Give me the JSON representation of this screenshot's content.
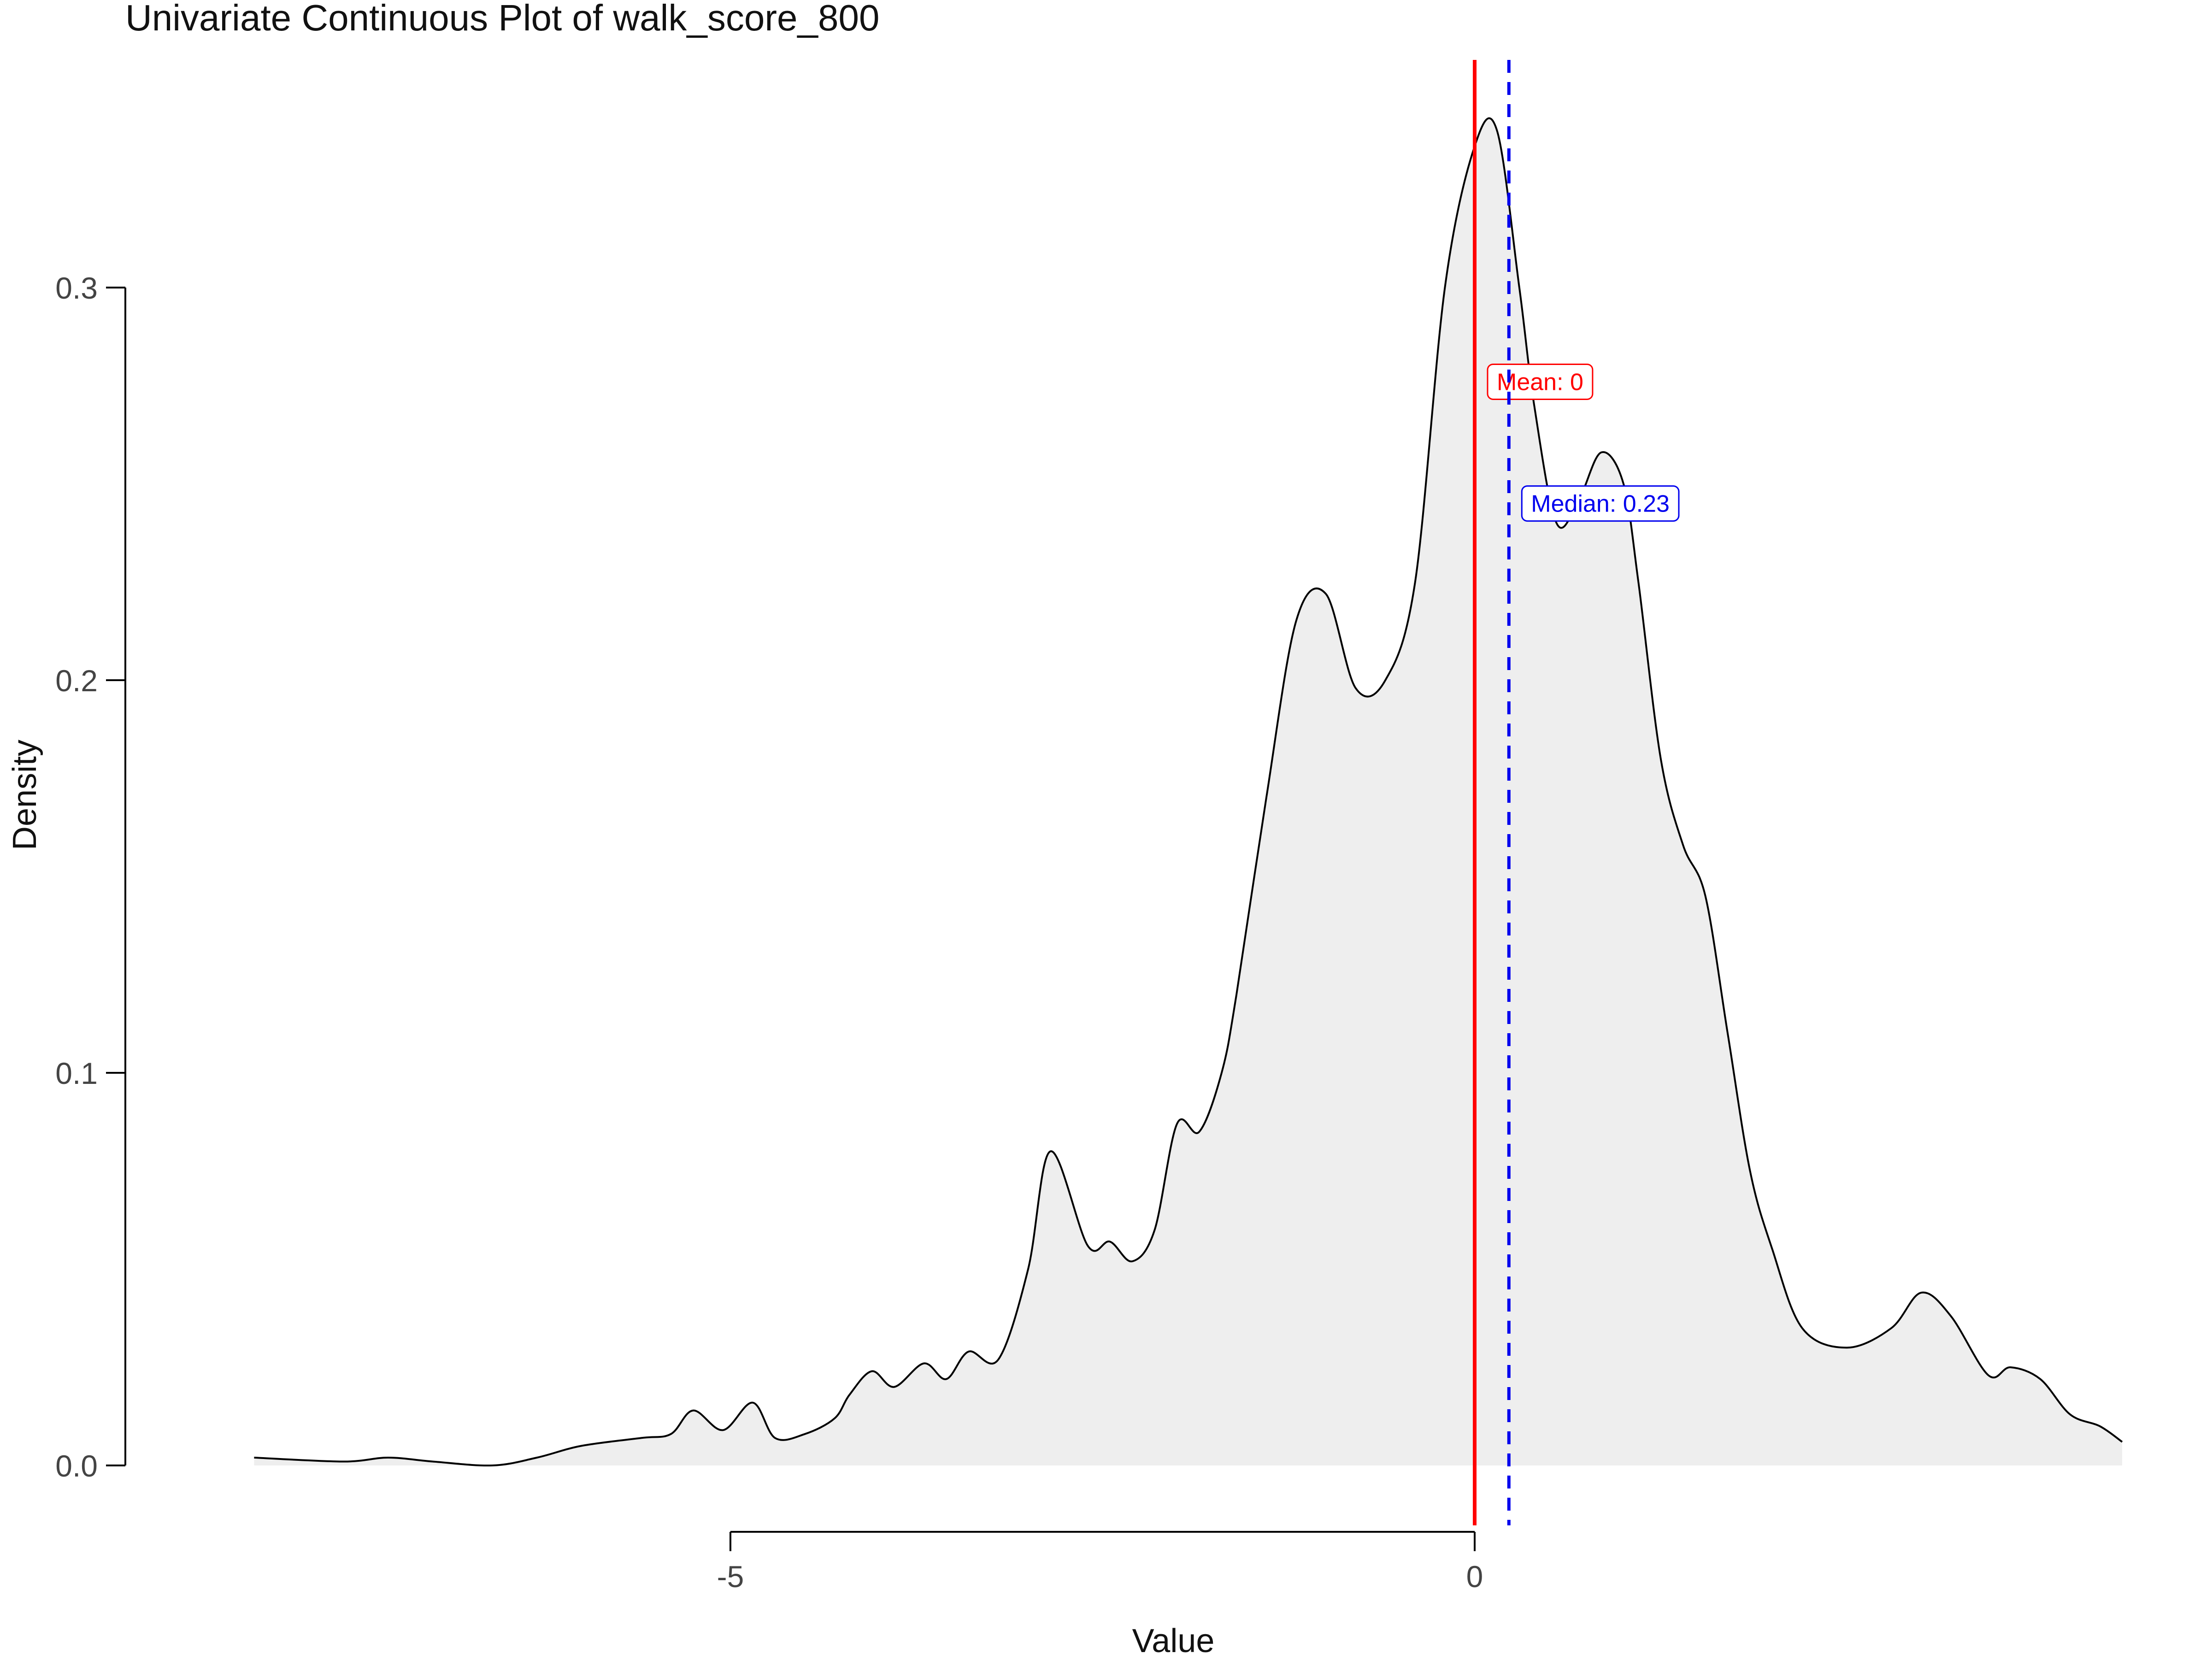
{
  "colors": {
    "density_fill": "#eeeeee",
    "density_line": "#000000",
    "mean_line": "#ff0000",
    "median_line": "#0000ee",
    "axis": "#000000"
  },
  "chart_data": {
    "type": "area",
    "title": "Univariate Continuous Plot of walk_score_800",
    "xlabel": "Value",
    "ylabel": "Density",
    "xlim": [
      -8.2,
      4.4
    ],
    "ylim": [
      0,
      0.34
    ],
    "x_ticks": [
      -5,
      0
    ],
    "x_tick_labels": [
      "-5",
      "0"
    ],
    "y_ticks": [
      0.0,
      0.1,
      0.2,
      0.3
    ],
    "y_tick_labels": [
      "0.0",
      "0.1",
      "0.2",
      "0.3"
    ],
    "grid": false,
    "legend": "none",
    "series": [
      {
        "x": [
          -8.2,
          -7.6,
          -7.3,
          -7.0,
          -6.6,
          -6.3,
          -6.0,
          -5.6,
          -5.4,
          -5.25,
          -5.05,
          -4.85,
          -4.7,
          -4.5,
          -4.3,
          -4.2,
          -4.05,
          -3.9,
          -3.7,
          -3.55,
          -3.4,
          -3.2,
          -3.0,
          -2.85,
          -2.6,
          -2.45,
          -2.3,
          -2.15,
          -2.0,
          -1.85,
          -1.7,
          -1.6,
          -1.4,
          -1.2,
          -1.0,
          -0.8,
          -0.6,
          -0.4,
          -0.2,
          0.0,
          0.15,
          0.3,
          0.4,
          0.55,
          0.7,
          0.85,
          1.0,
          1.1,
          1.25,
          1.4,
          1.55,
          1.7,
          1.85,
          2.0,
          2.2,
          2.5,
          2.8,
          3.0,
          3.2,
          3.45,
          3.6,
          3.8,
          4.0,
          4.2,
          4.35
        ],
        "y": [
          0.002,
          0.001,
          0.002,
          0.001,
          0.0,
          0.002,
          0.005,
          0.007,
          0.008,
          0.014,
          0.009,
          0.016,
          0.007,
          0.008,
          0.012,
          0.018,
          0.024,
          0.02,
          0.026,
          0.022,
          0.029,
          0.027,
          0.05,
          0.08,
          0.056,
          0.057,
          0.052,
          0.06,
          0.087,
          0.085,
          0.1,
          0.12,
          0.17,
          0.215,
          0.222,
          0.198,
          0.2,
          0.225,
          0.3,
          0.336,
          0.34,
          0.3,
          0.27,
          0.24,
          0.246,
          0.258,
          0.25,
          0.225,
          0.18,
          0.158,
          0.145,
          0.11,
          0.075,
          0.055,
          0.035,
          0.03,
          0.035,
          0.044,
          0.038,
          0.023,
          0.025,
          0.022,
          0.013,
          0.01,
          0.006
        ]
      }
    ],
    "reference_lines": [
      {
        "label": "Mean: 0",
        "x": 0.0,
        "style": "solid",
        "label_y": 0.276
      },
      {
        "label": "Median: 0.23",
        "x": 0.23,
        "style": "dashed",
        "label_y": 0.245
      }
    ]
  }
}
